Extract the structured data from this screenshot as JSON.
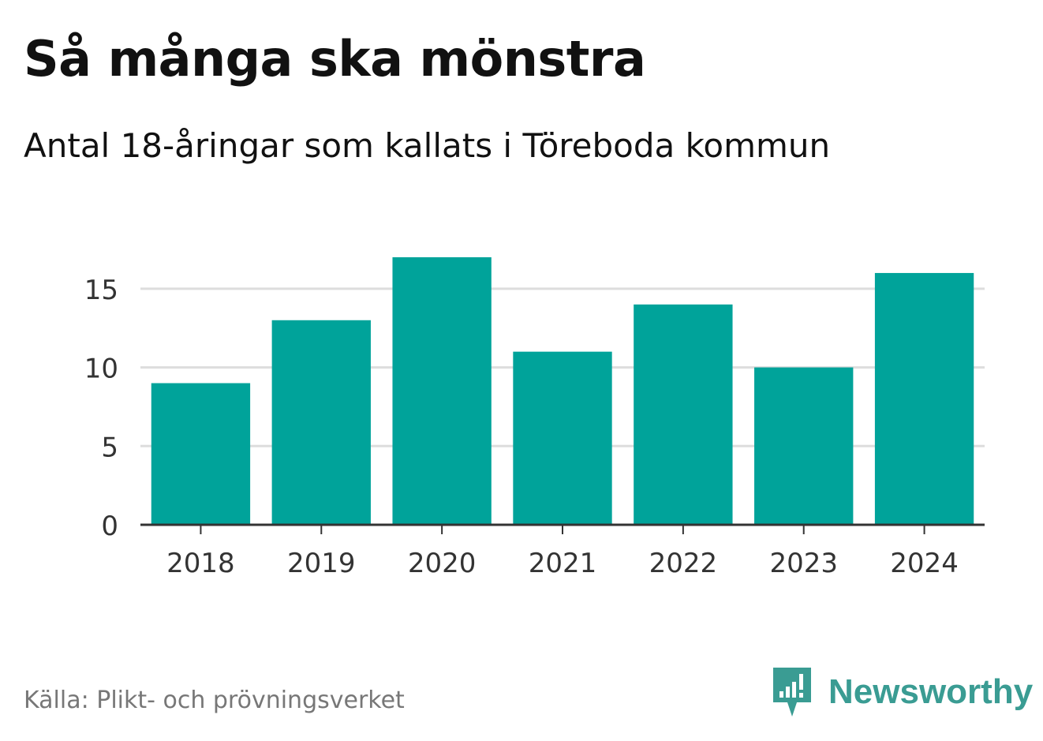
{
  "header": {
    "title": "Så många ska mönstra",
    "subtitle": "Antal 18-åringar som kallats i Töreboda kommun"
  },
  "footer": {
    "source": "Källa: Plikt- och prövningsverket",
    "brand": "Newsworthy"
  },
  "colors": {
    "bar": "#00a39a",
    "grid": "#dddddd",
    "axis": "#333333",
    "brand": "#3a9c93"
  },
  "chart_data": {
    "type": "bar",
    "title": "Så många ska mönstra",
    "subtitle": "Antal 18-åringar som kallats i Töreboda kommun",
    "categories": [
      "2018",
      "2019",
      "2020",
      "2021",
      "2022",
      "2023",
      "2024"
    ],
    "values": [
      9,
      13,
      17,
      11,
      14,
      10,
      16
    ],
    "xlabel": "",
    "ylabel": "",
    "ylim": [
      0,
      17
    ],
    "yticks": [
      0,
      5,
      10,
      15
    ],
    "grid": true,
    "legend": "none"
  }
}
